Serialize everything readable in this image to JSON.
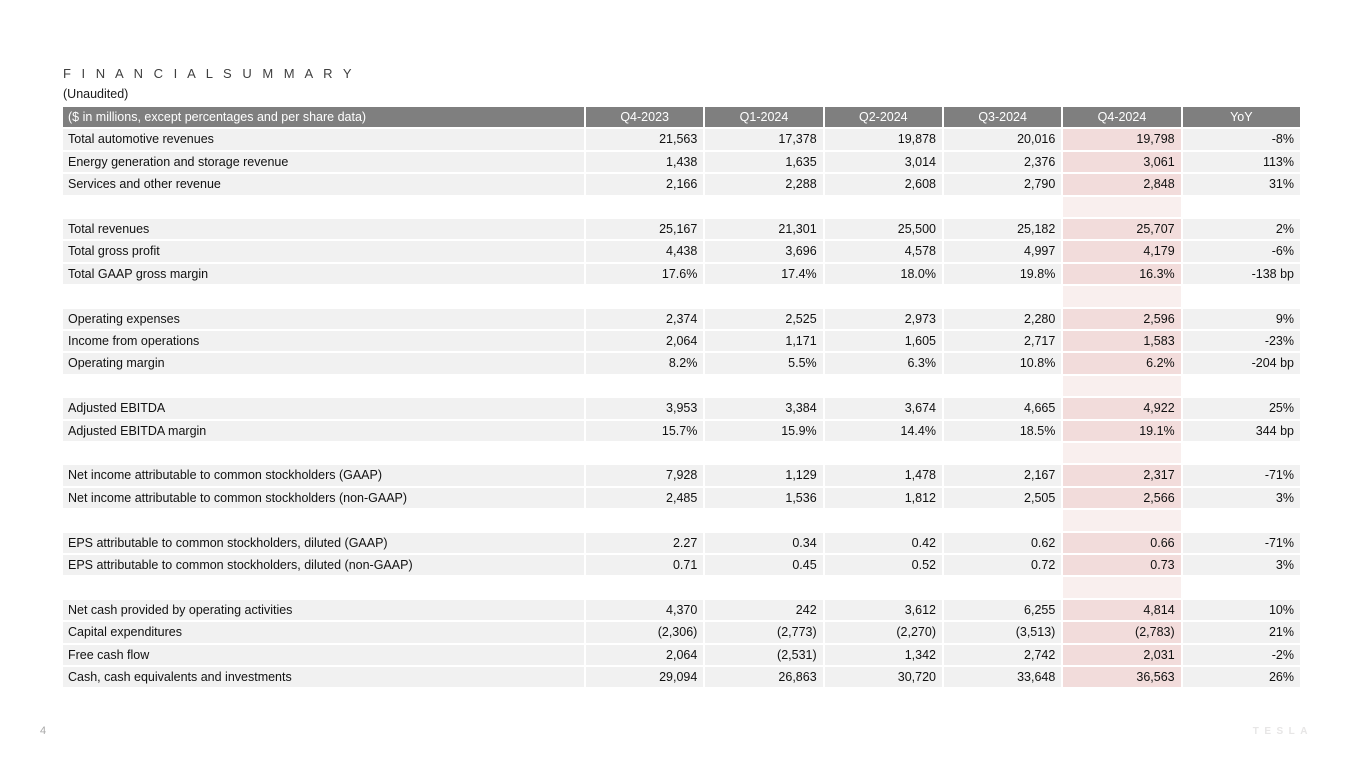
{
  "page": {
    "title": "F I N A N C I A L   S U M M A R Y",
    "subtitle": "(Unaudited)",
    "page_number": "4",
    "logo_text": "TESLA"
  },
  "colors": {
    "header_bg": "#7f7f7f",
    "header_text": "#ffffff",
    "row_bg": "#f1f1f1",
    "highlight_bg": "#f2dcdb",
    "highlight_spacer_bg": "#f9efee"
  },
  "table": {
    "header": [
      "($ in millions, except percentages and per share data)",
      "Q4-2023",
      "Q1-2024",
      "Q2-2024",
      "Q3-2024",
      "Q4-2024",
      "YoY"
    ],
    "highlight_column": "Q4-2024",
    "rows": [
      {
        "label": "Total automotive revenues",
        "values": [
          "21,563",
          "17,378",
          "19,878",
          "20,016",
          "19,798",
          "-8%"
        ]
      },
      {
        "label": "Energy generation and storage revenue",
        "values": [
          "1,438",
          "1,635",
          "3,014",
          "2,376",
          "3,061",
          "113%"
        ]
      },
      {
        "label": "Services and other revenue",
        "values": [
          "2,166",
          "2,288",
          "2,608",
          "2,790",
          "2,848",
          "31%"
        ]
      },
      {
        "spacer": true
      },
      {
        "label": "Total revenues",
        "values": [
          "25,167",
          "21,301",
          "25,500",
          "25,182",
          "25,707",
          "2%"
        ]
      },
      {
        "label": "Total gross profit",
        "values": [
          "4,438",
          "3,696",
          "4,578",
          "4,997",
          "4,179",
          "-6%"
        ]
      },
      {
        "label": "Total GAAP gross margin",
        "values": [
          "17.6%",
          "17.4%",
          "18.0%",
          "19.8%",
          "16.3%",
          "-138 bp"
        ]
      },
      {
        "spacer": true
      },
      {
        "label": "Operating expenses",
        "values": [
          "2,374",
          "2,525",
          "2,973",
          "2,280",
          "2,596",
          "9%"
        ]
      },
      {
        "label": "Income from operations",
        "values": [
          "2,064",
          "1,171",
          "1,605",
          "2,717",
          "1,583",
          "-23%"
        ]
      },
      {
        "label": "Operating margin",
        "values": [
          "8.2%",
          "5.5%",
          "6.3%",
          "10.8%",
          "6.2%",
          "-204 bp"
        ]
      },
      {
        "spacer": true
      },
      {
        "label": "Adjusted EBITDA",
        "values": [
          "3,953",
          "3,384",
          "3,674",
          "4,665",
          "4,922",
          "25%"
        ]
      },
      {
        "label": "Adjusted EBITDA margin",
        "values": [
          "15.7%",
          "15.9%",
          "14.4%",
          "18.5%",
          "19.1%",
          "344 bp"
        ]
      },
      {
        "spacer": true
      },
      {
        "label": "Net income attributable to common stockholders (GAAP)",
        "values": [
          "7,928",
          "1,129",
          "1,478",
          "2,167",
          "2,317",
          "-71%"
        ]
      },
      {
        "label": "Net income attributable to common stockholders (non-GAAP)",
        "values": [
          "2,485",
          "1,536",
          "1,812",
          "2,505",
          "2,566",
          "3%"
        ]
      },
      {
        "spacer": true
      },
      {
        "label": "EPS attributable to common stockholders, diluted (GAAP)",
        "values": [
          "2.27",
          "0.34",
          "0.42",
          "0.62",
          "0.66",
          "-71%"
        ]
      },
      {
        "label": "EPS attributable to common stockholders, diluted (non-GAAP)",
        "values": [
          "0.71",
          "0.45",
          "0.52",
          "0.72",
          "0.73",
          "3%"
        ]
      },
      {
        "spacer": true
      },
      {
        "label": "Net cash provided by operating activities",
        "values": [
          "4,370",
          "242",
          "3,612",
          "6,255",
          "4,814",
          "10%"
        ]
      },
      {
        "label": "Capital expenditures",
        "values": [
          "(2,306)",
          "(2,773)",
          "(2,270)",
          "(3,513)",
          "(2,783)",
          "21%"
        ]
      },
      {
        "label": "Free cash flow",
        "values": [
          "2,064",
          "(2,531)",
          "1,342",
          "2,742",
          "2,031",
          "-2%"
        ]
      },
      {
        "label": "Cash, cash equivalents and investments",
        "values": [
          "29,094",
          "26,863",
          "30,720",
          "33,648",
          "36,563",
          "26%"
        ]
      }
    ]
  },
  "chart_data": {
    "type": "table",
    "title": "FINANCIAL SUMMARY (Unaudited)",
    "categories": [
      "Q4-2023",
      "Q1-2024",
      "Q2-2024",
      "Q3-2024",
      "Q4-2024"
    ],
    "series": [
      {
        "name": "Total automotive revenues",
        "values": [
          21563,
          17378,
          19878,
          20016,
          19798
        ],
        "yoy": "-8%"
      },
      {
        "name": "Energy generation and storage revenue",
        "values": [
          1438,
          1635,
          3014,
          2376,
          3061
        ],
        "yoy": "113%"
      },
      {
        "name": "Services and other revenue",
        "values": [
          2166,
          2288,
          2608,
          2790,
          2848
        ],
        "yoy": "31%"
      },
      {
        "name": "Total revenues",
        "values": [
          25167,
          21301,
          25500,
          25182,
          25707
        ],
        "yoy": "2%"
      },
      {
        "name": "Total gross profit",
        "values": [
          4438,
          3696,
          4578,
          4997,
          4179
        ],
        "yoy": "-6%"
      },
      {
        "name": "Total GAAP gross margin",
        "values": [
          "17.6%",
          "17.4%",
          "18.0%",
          "19.8%",
          "16.3%"
        ],
        "yoy": "-138 bp"
      },
      {
        "name": "Operating expenses",
        "values": [
          2374,
          2525,
          2973,
          2280,
          2596
        ],
        "yoy": "9%"
      },
      {
        "name": "Income from operations",
        "values": [
          2064,
          1171,
          1605,
          2717,
          1583
        ],
        "yoy": "-23%"
      },
      {
        "name": "Operating margin",
        "values": [
          "8.2%",
          "5.5%",
          "6.3%",
          "10.8%",
          "6.2%"
        ],
        "yoy": "-204 bp"
      },
      {
        "name": "Adjusted EBITDA",
        "values": [
          3953,
          3384,
          3674,
          4665,
          4922
        ],
        "yoy": "25%"
      },
      {
        "name": "Adjusted EBITDA margin",
        "values": [
          "15.7%",
          "15.9%",
          "14.4%",
          "18.5%",
          "19.1%"
        ],
        "yoy": "344 bp"
      },
      {
        "name": "Net income attributable to common stockholders (GAAP)",
        "values": [
          7928,
          1129,
          1478,
          2167,
          2317
        ],
        "yoy": "-71%"
      },
      {
        "name": "Net income attributable to common stockholders (non-GAAP)",
        "values": [
          2485,
          1536,
          1812,
          2505,
          2566
        ],
        "yoy": "3%"
      },
      {
        "name": "EPS attributable to common stockholders, diluted (GAAP)",
        "values": [
          2.27,
          0.34,
          0.42,
          0.62,
          0.66
        ],
        "yoy": "-71%"
      },
      {
        "name": "EPS attributable to common stockholders, diluted (non-GAAP)",
        "values": [
          0.71,
          0.45,
          0.52,
          0.72,
          0.73
        ],
        "yoy": "3%"
      },
      {
        "name": "Net cash provided by operating activities",
        "values": [
          4370,
          242,
          3612,
          6255,
          4814
        ],
        "yoy": "10%"
      },
      {
        "name": "Capital expenditures",
        "values": [
          -2306,
          -2773,
          -2270,
          -3513,
          -2783
        ],
        "yoy": "21%"
      },
      {
        "name": "Free cash flow",
        "values": [
          2064,
          -2531,
          1342,
          2742,
          2031
        ],
        "yoy": "-2%"
      },
      {
        "name": "Cash, cash equivalents and investments",
        "values": [
          29094,
          26863,
          30720,
          33648,
          36563
        ],
        "yoy": "26%"
      }
    ]
  }
}
